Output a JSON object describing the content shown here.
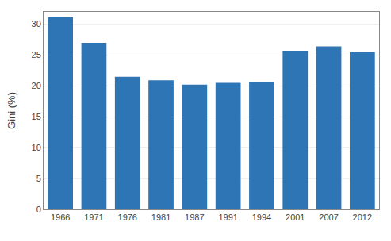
{
  "chart_data": {
    "type": "bar",
    "categories": [
      "1966",
      "1971",
      "1976",
      "1981",
      "1987",
      "1991",
      "1994",
      "2001",
      "2007",
      "2012"
    ],
    "values": [
      31.1,
      27.0,
      21.5,
      20.9,
      20.2,
      20.5,
      20.6,
      25.7,
      26.4,
      25.5
    ],
    "color": "#2e75b6",
    "ylabel": "Gini (%)",
    "ylim": [
      0,
      32
    ],
    "yticks": [
      0,
      5,
      10,
      15,
      20,
      25,
      30
    ],
    "grid": true
  }
}
